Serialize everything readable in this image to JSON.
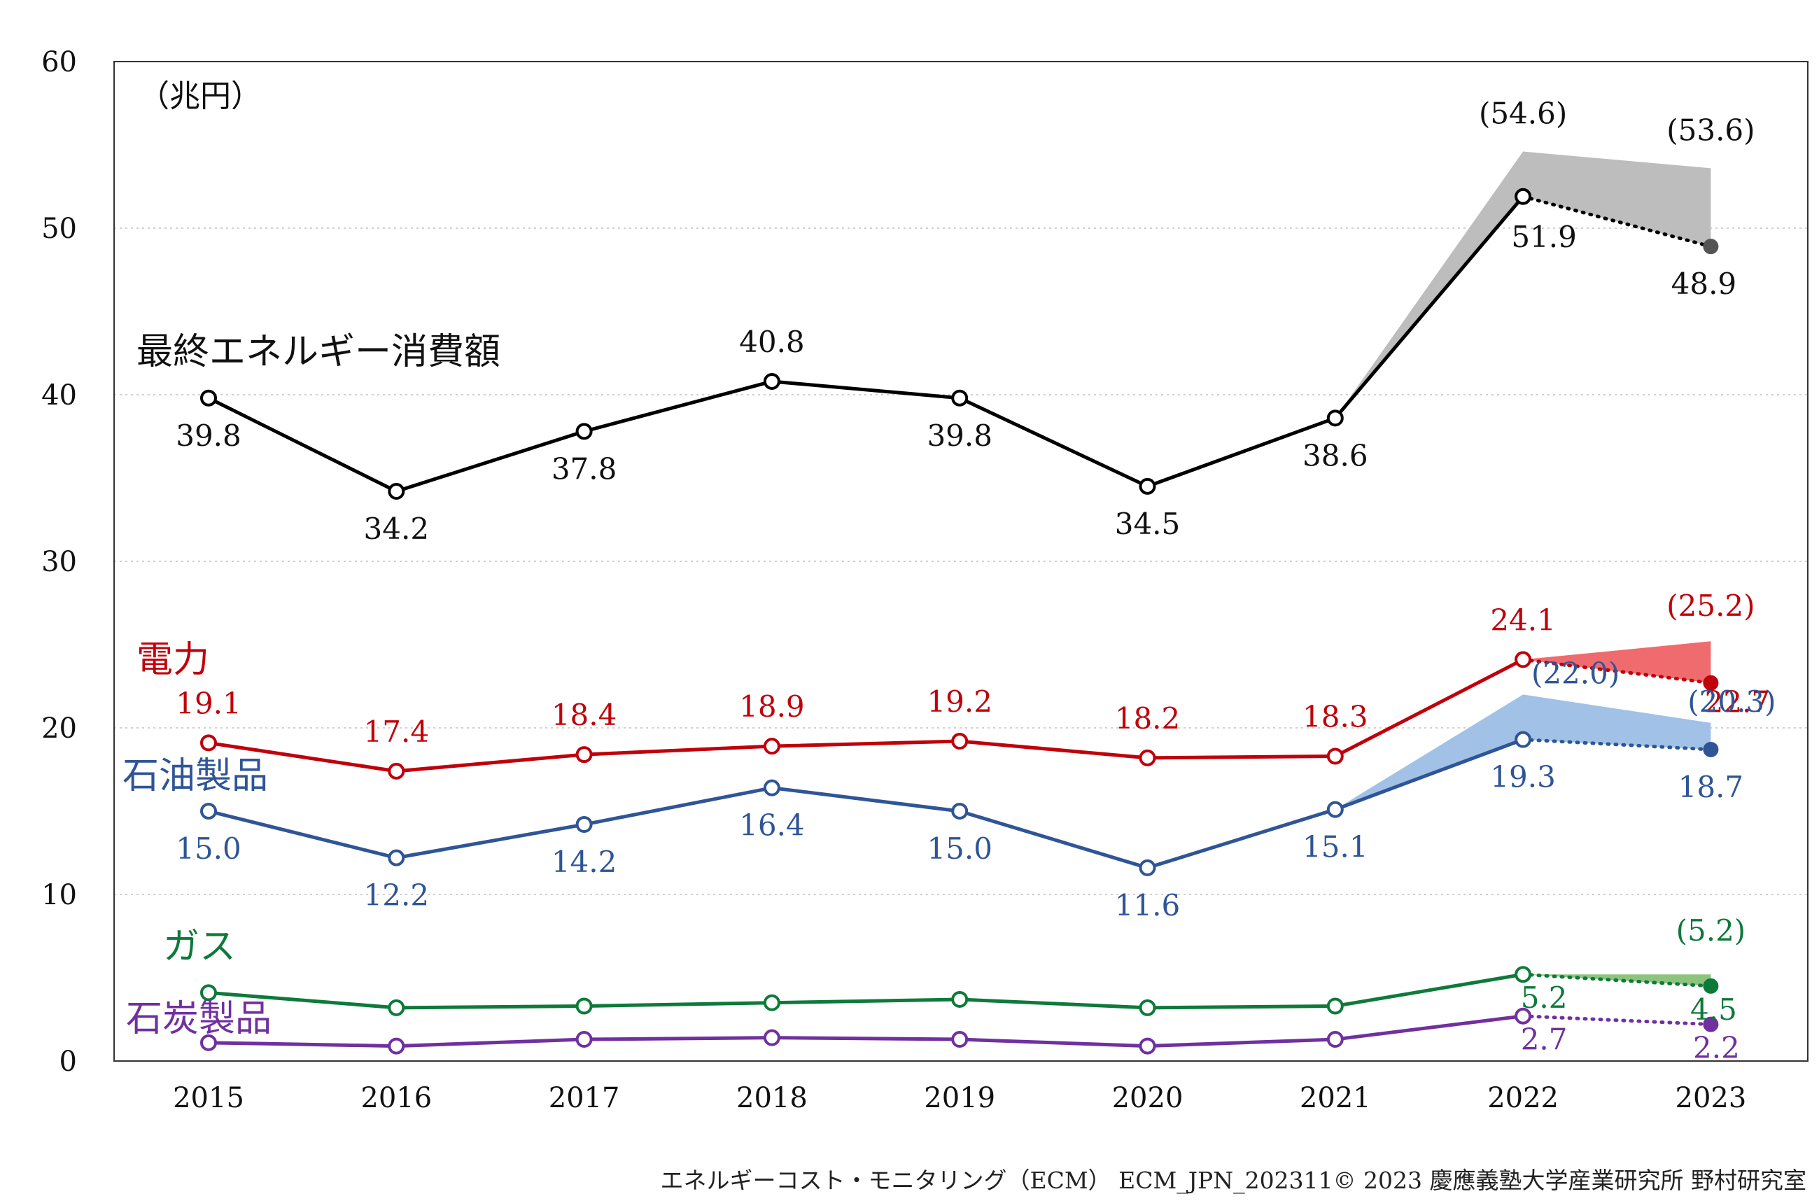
{
  "chart_data": {
    "type": "line",
    "unit_label": "（兆円）",
    "categories": [
      "2015",
      "2016",
      "2017",
      "2018",
      "2019",
      "2020",
      "2021",
      "2022",
      "2023"
    ],
    "ylim": [
      0,
      60
    ],
    "yticks": [
      "0",
      "10",
      "20",
      "30",
      "40",
      "50",
      "60"
    ],
    "grid": true,
    "series": [
      {
        "name": "最終エネルギー消費額",
        "color": "#000000",
        "band_color": "#bdbdbd",
        "values": [
          39.8,
          34.2,
          37.8,
          40.8,
          39.8,
          34.5,
          38.6,
          51.9,
          48.9
        ],
        "value_labels": [
          "39.8",
          "34.2",
          "37.8",
          "40.8",
          "39.8",
          "34.5",
          "38.6",
          "51.9",
          "48.9"
        ],
        "upper_values": [
          54.6,
          53.6
        ],
        "upper_labels": [
          "(54.6)",
          "(53.6)"
        ]
      },
      {
        "name": "電力",
        "color": "#c0000a",
        "band_color": "#f06b6e",
        "values": [
          19.1,
          17.4,
          18.4,
          18.9,
          19.2,
          18.2,
          18.3,
          24.1,
          22.7
        ],
        "value_labels": [
          "19.1",
          "17.4",
          "18.4",
          "18.9",
          "19.2",
          "18.2",
          "18.3",
          "24.1",
          "22.7"
        ],
        "upper_values": [
          24.1,
          25.2
        ],
        "upper_labels": [
          "",
          "(25.2)"
        ]
      },
      {
        "name": "石油製品",
        "color": "#2f5597",
        "band_color": "#a1c2e6",
        "values": [
          15.0,
          12.2,
          14.2,
          16.4,
          15.0,
          11.6,
          15.1,
          19.3,
          18.7
        ],
        "value_labels": [
          "15.0",
          "12.2",
          "14.2",
          "16.4",
          "15.0",
          "11.6",
          "15.1",
          "19.3",
          "18.7"
        ],
        "upper_values": [
          22.0,
          20.3
        ],
        "upper_labels": [
          "(22.0)",
          "(20.3)"
        ]
      },
      {
        "name": "ガス",
        "color": "#0e7a3a",
        "band_color": "#8cc47e",
        "values": [
          4.1,
          3.2,
          3.3,
          3.5,
          3.7,
          3.2,
          3.3,
          5.2,
          4.5
        ],
        "value_labels": [
          "",
          "",
          "",
          "",
          "",
          "",
          "",
          "5.2",
          "4.5"
        ],
        "upper_values": [
          5.2,
          5.2
        ],
        "upper_labels": [
          "",
          "(5.2)"
        ]
      },
      {
        "name": "石炭製品",
        "color": "#7030a0",
        "values": [
          1.1,
          0.9,
          1.3,
          1.4,
          1.3,
          0.9,
          1.3,
          2.7,
          2.2
        ],
        "value_labels": [
          "",
          "",
          "",
          "",
          "",
          "",
          "",
          "2.7",
          "2.2"
        ]
      }
    ]
  },
  "footer": "エネルギーコスト・モニタリング（ECM） ECM_JPN_202311© 2023 慶應義塾大学産業研究所 野村研究室"
}
